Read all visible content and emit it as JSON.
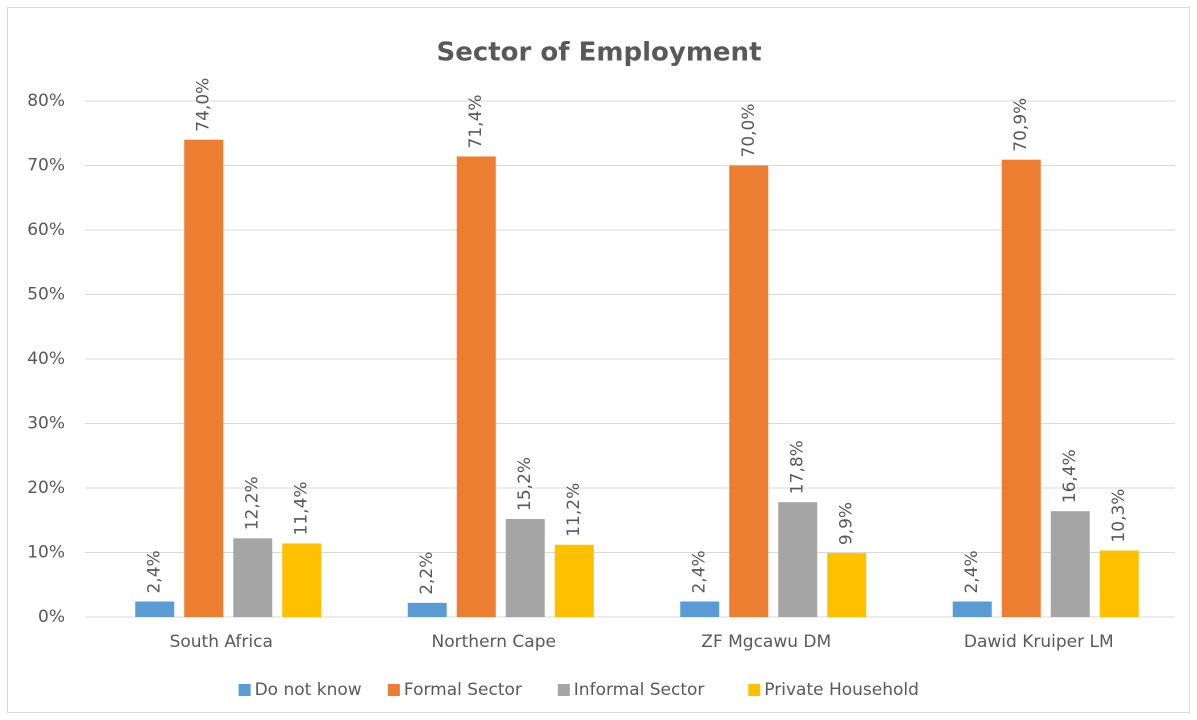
{
  "chart_data": {
    "type": "bar",
    "title": "Sector of Employment",
    "categories": [
      "South Africa",
      "Northern Cape",
      "ZF Mgcawu DM",
      "Dawid Kruiper LM"
    ],
    "series": [
      {
        "name": "Do not know",
        "color": "#5b9bd5",
        "values": [
          2.4,
          2.2,
          2.4,
          2.4
        ],
        "value_labels": [
          "2,4%",
          "2,2%",
          "2,4%",
          "2,4%"
        ]
      },
      {
        "name": "Formal Sector",
        "color": "#ed7d31",
        "values": [
          74.0,
          71.4,
          70.0,
          70.9
        ],
        "value_labels": [
          "74,0%",
          "71,4%",
          "70,0%",
          "70,9%"
        ]
      },
      {
        "name": "Informal Sector",
        "color": "#a5a5a5",
        "values": [
          12.2,
          15.2,
          17.8,
          16.4
        ],
        "value_labels": [
          "12,2%",
          "15,2%",
          "17,8%",
          "16,4%"
        ]
      },
      {
        "name": "Private Household",
        "color": "#ffc000",
        "values": [
          11.4,
          11.2,
          9.9,
          10.3
        ],
        "value_labels": [
          "11,4%",
          "11,2%",
          "9,9%",
          "10,3%"
        ]
      }
    ],
    "ylim": [
      0,
      80
    ],
    "yticks": [
      {
        "value": 0,
        "label": "0%"
      },
      {
        "value": 10,
        "label": "10%"
      },
      {
        "value": 20,
        "label": "20%"
      },
      {
        "value": 30,
        "label": "30%"
      },
      {
        "value": 40,
        "label": "40%"
      },
      {
        "value": 50,
        "label": "50%"
      },
      {
        "value": 60,
        "label": "60%"
      },
      {
        "value": 70,
        "label": "70%"
      },
      {
        "value": 80,
        "label": "80%"
      }
    ],
    "grid": true,
    "legend": "bottom"
  }
}
